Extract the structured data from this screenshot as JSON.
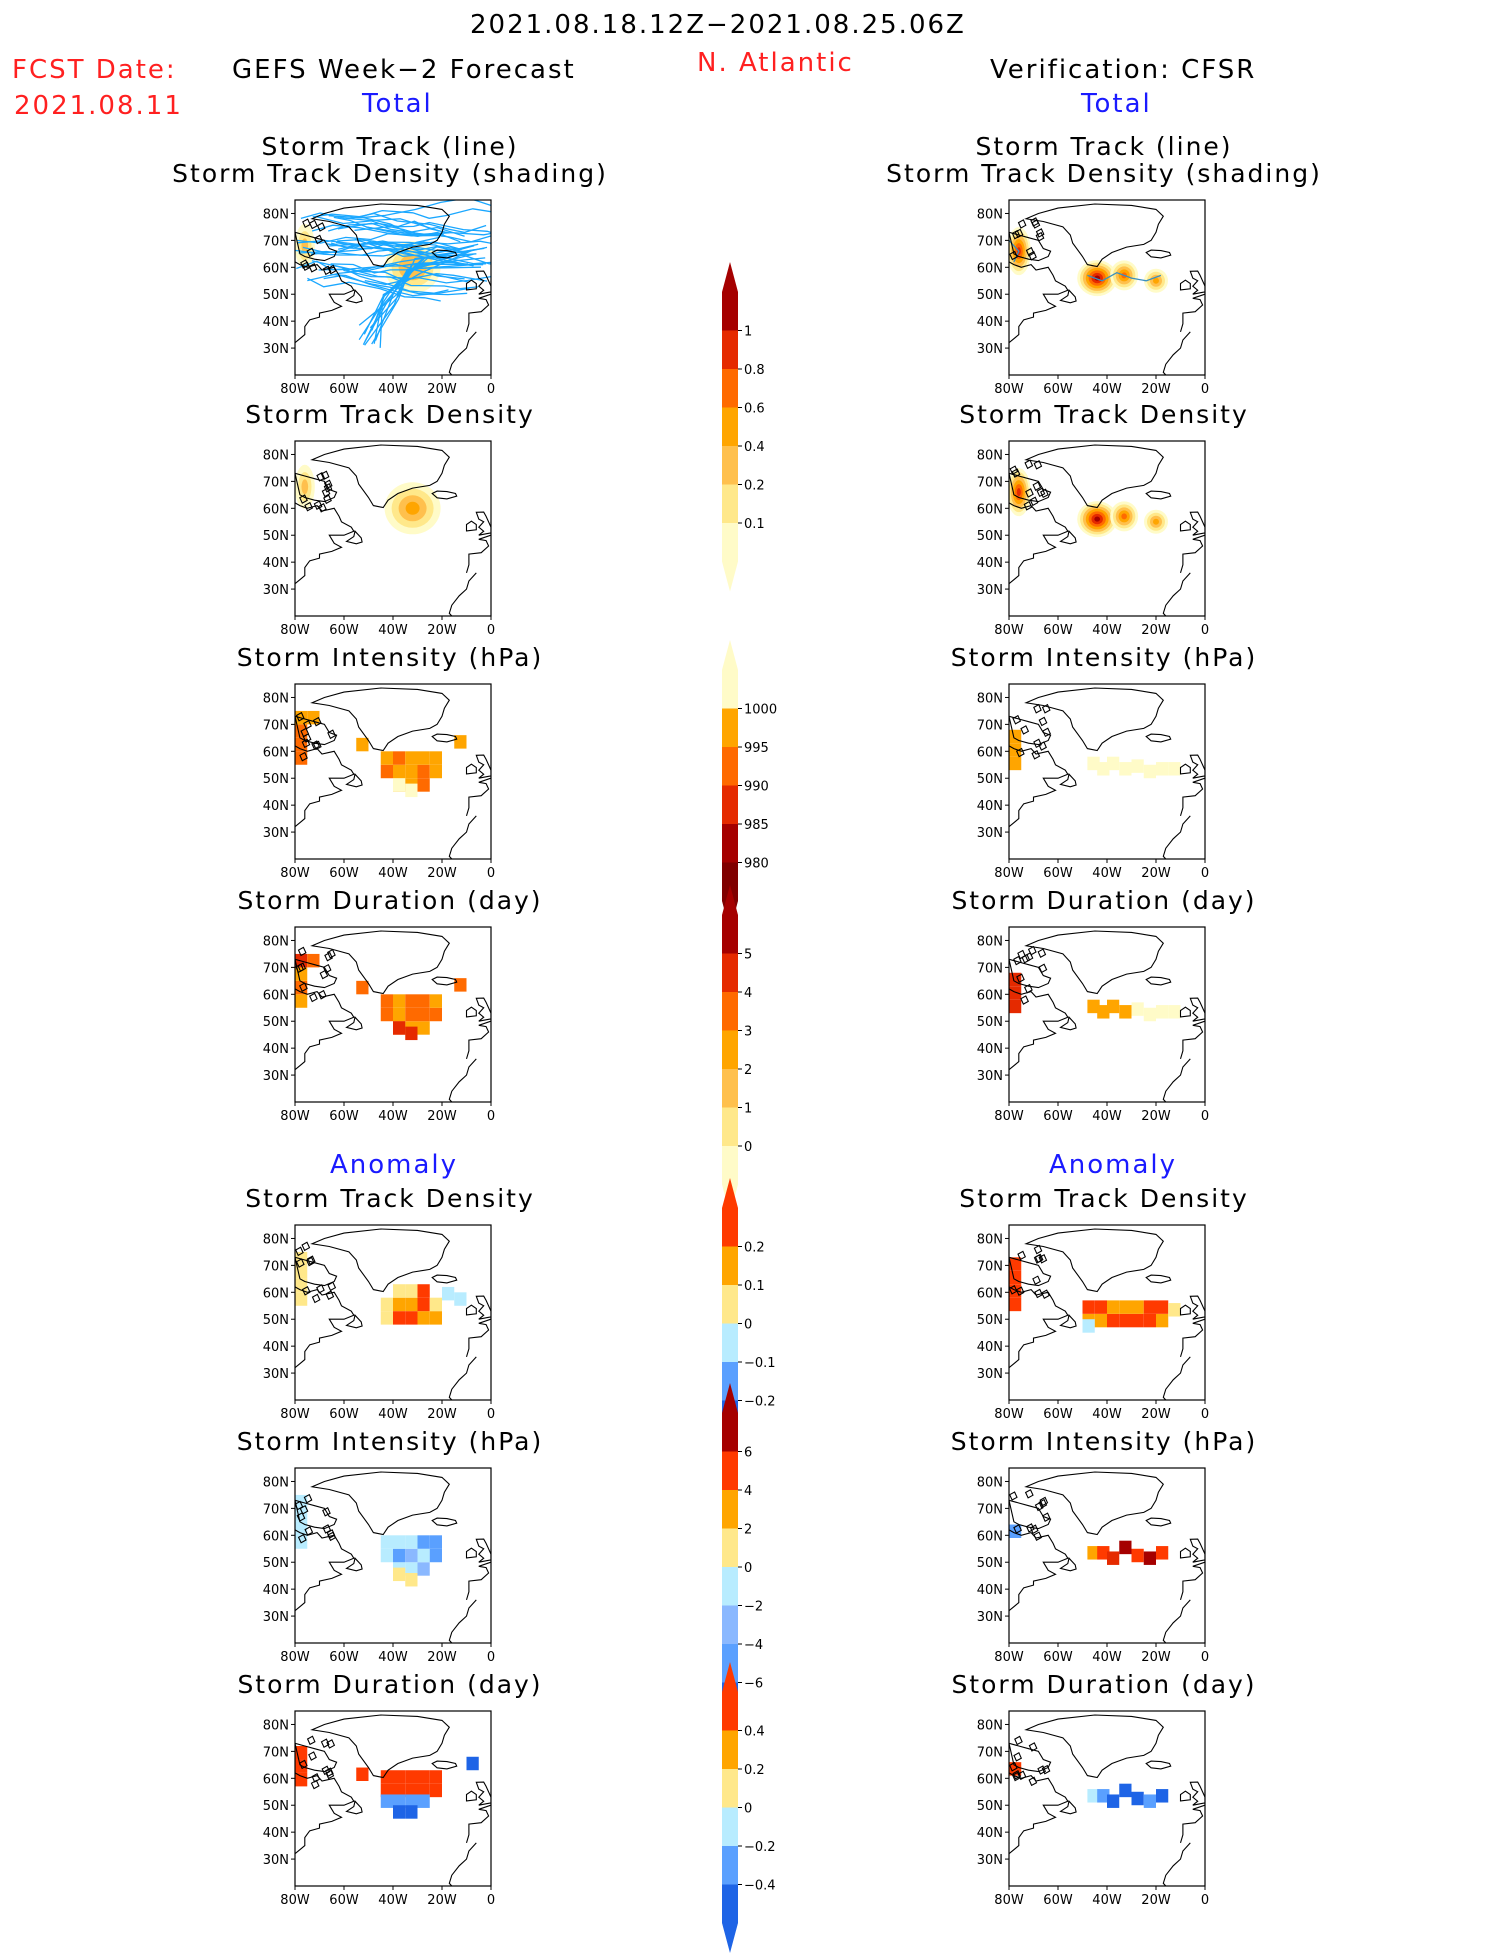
{
  "header": {
    "period": "2021.08.18.12Z−2021.08.25.06Z",
    "fcst_label": "FCST Date:",
    "fcst_date": "2021.08.11",
    "model_title": "GEFS Week−2 Forecast",
    "region": "N. Atlantic",
    "verification_title": "Verification: CFSR",
    "total_label": "Total",
    "anomaly_label": "Anomaly"
  },
  "panel_titles": {
    "track_line": "Storm Track (line)",
    "track_shading": "Storm Track Density (shading)",
    "density": "Storm Track Density",
    "intensity": "Storm Intensity (hPa)",
    "duration": "Storm Duration (day)"
  },
  "axes": {
    "lat_ticks": [
      "80N",
      "70N",
      "60N",
      "50N",
      "40N",
      "30N"
    ],
    "lon_ticks": [
      "80W",
      "60W",
      "40W",
      "20W",
      "0"
    ]
  },
  "colorbars": {
    "density": {
      "labels": [
        "1",
        "0.8",
        "0.6",
        "0.4",
        "0.2",
        "0.1"
      ],
      "colors": [
        "#a50000",
        "#e52a00",
        "#ff6a00",
        "#ffa500",
        "#ffc04d",
        "#ffe88a",
        "#fffbc8"
      ]
    },
    "intensity": {
      "labels": [
        "1000",
        "995",
        "990",
        "985",
        "980"
      ],
      "colors": [
        "#fffbc8",
        "#ffa500",
        "#ff6a00",
        "#e52a00",
        "#a50000",
        "#800000"
      ]
    },
    "duration": {
      "labels": [
        "5",
        "4",
        "3",
        "2",
        "1",
        "0"
      ],
      "colors": [
        "#a50000",
        "#e52a00",
        "#ff6a00",
        "#ffa500",
        "#ffc04d",
        "#ffe88a",
        "#fffbc8"
      ]
    },
    "density_anom": {
      "labels": [
        "0.2",
        "0.1",
        "0",
        "−0.1",
        "−0.2"
      ],
      "colors": [
        "#ff3a00",
        "#ffa500",
        "#ffe88a",
        "#b8ecff",
        "#5aa0ff",
        "#1e64e6"
      ]
    },
    "intensity_anom": {
      "labels": [
        "6",
        "4",
        "2",
        "0",
        "−2",
        "−4",
        "−6"
      ],
      "colors": [
        "#a50000",
        "#ff3a00",
        "#ffa500",
        "#ffe88a",
        "#b8ecff",
        "#8ab8ff",
        "#5aa0ff",
        "#1e64e6"
      ]
    },
    "duration_anom": {
      "labels": [
        "0.4",
        "0.2",
        "0",
        "−0.2",
        "−0.4"
      ],
      "colors": [
        "#ff3a00",
        "#ffa500",
        "#ffe88a",
        "#b8ecff",
        "#5aa0ff",
        "#1e64e6"
      ]
    }
  },
  "chart_data": [
    {
      "type": "heatmap",
      "column": "GEFS Week−2 Forecast",
      "section": "Total",
      "title": "Storm Track (line) / Storm Track Density (shading)",
      "xlim": [
        -80,
        0
      ],
      "ylim": [
        20,
        85
      ],
      "blobs": [
        {
          "lon": -32,
          "lat": 60,
          "level": 1
        },
        {
          "lon": -76,
          "lat": 68,
          "level": 1
        }
      ],
      "tracks": "ensemble storm tracks (blue lines)"
    },
    {
      "type": "heatmap",
      "column": "Verification: CFSR",
      "section": "Total",
      "title": "Storm Track (line) / Storm Track Density (shading)",
      "xlim": [
        -80,
        0
      ],
      "ylim": [
        20,
        85
      ],
      "blobs": [
        {
          "lon": -44,
          "lat": 56,
          "level": 5
        },
        {
          "lon": -32,
          "lat": 57,
          "level": 3
        },
        {
          "lon": -18,
          "lat": 55,
          "level": 2
        },
        {
          "lon": -76,
          "lat": 66,
          "level": 4
        }
      ]
    },
    {
      "type": "heatmap",
      "column": "GEFS Week−2 Forecast",
      "section": "Total",
      "title": "Storm Track Density",
      "xlim": [
        -80,
        0
      ],
      "ylim": [
        20,
        85
      ],
      "blobs": [
        {
          "lon": -32,
          "lat": 60,
          "level": 2
        },
        {
          "lon": -76,
          "lat": 68,
          "level": 1
        }
      ]
    },
    {
      "type": "heatmap",
      "column": "Verification: CFSR",
      "section": "Total",
      "title": "Storm Track Density",
      "xlim": [
        -80,
        0
      ],
      "ylim": [
        20,
        85
      ],
      "blobs": [
        {
          "lon": -44,
          "lat": 56,
          "level": 5
        },
        {
          "lon": -32,
          "lat": 57,
          "level": 3
        },
        {
          "lon": -18,
          "lat": 55,
          "level": 2
        },
        {
          "lon": -76,
          "lat": 66,
          "level": 4
        }
      ]
    },
    {
      "type": "heatmap",
      "column": "GEFS Week−2 Forecast",
      "section": "Total",
      "title": "Storm Intensity (hPa)",
      "xlim": [
        -80,
        0
      ],
      "ylim": [
        20,
        85
      ],
      "cells": "grid of 995–985 hPa centred near 35W 60N"
    },
    {
      "type": "heatmap",
      "column": "Verification: CFSR",
      "section": "Total",
      "title": "Storm Intensity (hPa)",
      "xlim": [
        -80,
        0
      ],
      "ylim": [
        20,
        85
      ],
      "cells": "values near 1000 hPa along 55N"
    },
    {
      "type": "heatmap",
      "column": "GEFS Week−2 Forecast",
      "section": "Total",
      "title": "Storm Duration (day)",
      "xlim": [
        -80,
        0
      ],
      "ylim": [
        20,
        85
      ],
      "cells": "3–4 days centred near 35W 60N"
    },
    {
      "type": "heatmap",
      "column": "Verification: CFSR",
      "section": "Total",
      "title": "Storm Duration (day)",
      "xlim": [
        -80,
        0
      ],
      "ylim": [
        20,
        85
      ],
      "cells": "0–2 days along 55N"
    },
    {
      "type": "heatmap",
      "column": "GEFS Week−2 Forecast",
      "section": "Anomaly",
      "title": "Storm Track Density",
      "xlim": [
        -80,
        0
      ],
      "ylim": [
        20,
        85
      ]
    },
    {
      "type": "heatmap",
      "column": "Verification: CFSR",
      "section": "Anomaly",
      "title": "Storm Track Density",
      "xlim": [
        -80,
        0
      ],
      "ylim": [
        20,
        85
      ]
    },
    {
      "type": "heatmap",
      "column": "GEFS Week−2 Forecast",
      "section": "Anomaly",
      "title": "Storm Intensity (hPa)",
      "xlim": [
        -80,
        0
      ],
      "ylim": [
        20,
        85
      ]
    },
    {
      "type": "heatmap",
      "column": "Verification: CFSR",
      "section": "Anomaly",
      "title": "Storm Intensity (hPa)",
      "xlim": [
        -80,
        0
      ],
      "ylim": [
        20,
        85
      ]
    },
    {
      "type": "heatmap",
      "column": "GEFS Week−2 Forecast",
      "section": "Anomaly",
      "title": "Storm Duration (day)",
      "xlim": [
        -80,
        0
      ],
      "ylim": [
        20,
        85
      ]
    },
    {
      "type": "heatmap",
      "column": "Verification: CFSR",
      "section": "Anomaly",
      "title": "Storm Duration (day)",
      "xlim": [
        -80,
        0
      ],
      "ylim": [
        20,
        85
      ]
    }
  ]
}
